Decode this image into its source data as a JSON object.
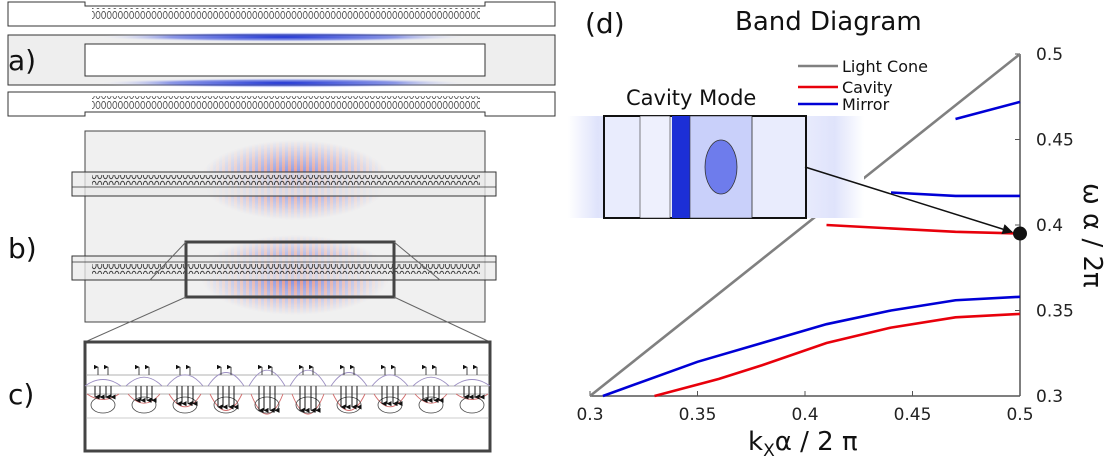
{
  "panels": {
    "a": "a)",
    "b": "b)",
    "c": "c)",
    "d": "(d)"
  },
  "inset_title": "Cavity Mode",
  "colors": {
    "light_cone": "#808080",
    "cavity": "#e8000b",
    "mirror": "#0000d6",
    "field_blue": "#1a2fd1",
    "field_red": "#d83a2a"
  },
  "chart_data": {
    "type": "line",
    "title": "Band Diagram",
    "xlabel_main": "k",
    "xlabel_sub": "X",
    "xlabel_rest": "α  / 2 π",
    "ylabel": "ω α / 2π",
    "xlim": [
      0.3,
      0.5
    ],
    "ylim": [
      0.3,
      0.5
    ],
    "x_ticks": [
      "0.3",
      "0.35",
      "0.4",
      "0.45",
      "0.5"
    ],
    "y_ticks": [
      "0.3",
      "0.35",
      "0.4",
      "0.45",
      "0.5"
    ],
    "y_axis_side": "right",
    "legend_position": "top-left",
    "series": [
      {
        "name": "Light Cone",
        "color_key": "light_cone",
        "x": [
          0.3,
          0.5
        ],
        "y": [
          0.3,
          0.5
        ]
      },
      {
        "name": "Cavity",
        "color_key": "cavity",
        "x": [
          0.33,
          0.36,
          0.38,
          0.41,
          0.44,
          0.47,
          0.5
        ],
        "y": [
          0.3,
          0.31,
          0.318,
          0.331,
          0.34,
          0.346,
          0.348
        ]
      },
      {
        "name": "Mirror",
        "color_key": "mirror",
        "x": [
          0.306,
          0.35,
          0.38,
          0.41,
          0.44,
          0.47,
          0.5
        ],
        "y": [
          0.3,
          0.32,
          0.331,
          0.342,
          0.35,
          0.356,
          0.358
        ]
      },
      {
        "name": "",
        "color_key": "cavity",
        "x": [
          0.41,
          0.44,
          0.47,
          0.5
        ],
        "y": [
          0.4,
          0.398,
          0.396,
          0.395
        ]
      },
      {
        "name": "",
        "color_key": "mirror",
        "x": [
          0.44,
          0.47,
          0.5
        ],
        "y": [
          0.419,
          0.417,
          0.417
        ]
      },
      {
        "name": "",
        "color_key": "mirror",
        "x": [
          0.47,
          0.5
        ],
        "y": [
          0.462,
          0.472
        ]
      }
    ],
    "marker": {
      "x": 0.5,
      "y": 0.395
    }
  }
}
